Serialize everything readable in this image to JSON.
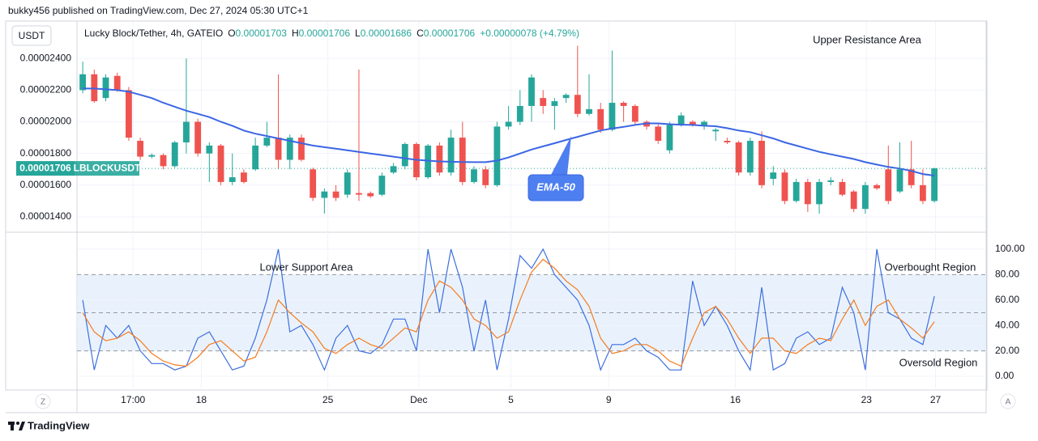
{
  "header": {
    "published": "bukky456 published on TradingView.com, Dec 27, 2024 05:30 UTC+1"
  },
  "footer": {
    "brand": "TradingView"
  },
  "controls": {
    "timezone": "Z",
    "auto_scale": "A"
  },
  "chart_data": [
    {
      "type": "candlestick",
      "currency": "USDT",
      "legend": {
        "symbol": "Lucky Block/Tether, 4h, GATEIO",
        "fields": [
          {
            "label": "O",
            "value": "0.00001703"
          },
          {
            "label": "H",
            "value": "0.00001706"
          },
          {
            "label": "L",
            "value": "0.00001686"
          },
          {
            "label": "C",
            "value": "0.00001706"
          }
        ],
        "change": "+0.00000078 (+4.79%)"
      },
      "last_price": {
        "value": 1.706e-05,
        "label": "0.00001706"
      },
      "ticker": "LBLOCKUSDT",
      "up_color": "#26a69a",
      "down_color": "#ef5350",
      "annotations": [
        "Upper Resistance Area"
      ],
      "open": [
        2.2e-05,
        2.3e-05,
        2.15e-05,
        2.29e-05,
        2.2e-05,
        1.88e-05,
        1.78e-05,
        1.79e-05,
        1.72e-05,
        1.87e-05,
        2e-05,
        1.8e-05,
        1.85e-05,
        1.62e-05,
        1.68e-05,
        1.7e-05,
        1.85e-05,
        1.9e-05,
        1.76e-05,
        1.9e-05,
        1.7e-05,
        1.52e-05,
        1.56e-05,
        1.54e-05,
        1.55e-05,
        1.55e-05,
        1.54e-05,
        1.68e-05,
        1.72e-05,
        1.86e-05,
        1.65e-05,
        1.85e-05,
        1.68e-05,
        1.9e-05,
        1.62e-05,
        1.7e-05,
        1.6e-05,
        1.97e-05,
        2e-05,
        2.1e-05,
        2.15e-05,
        2.1e-05,
        2.15e-05,
        2.17e-05,
        2.05e-05,
        2.08e-05,
        1.95e-05,
        2.12e-05,
        2.1e-05,
        2e-05,
        1.97e-05,
        1.82e-05,
        1.98e-05,
        2e-05,
        1.98e-05,
        1.94e-05,
        1.88e-05,
        1.87e-05,
        1.68e-05,
        1.88e-05,
        1.64e-05,
        1.68e-05,
        1.5e-05,
        1.62e-05,
        1.48e-05,
        1.62e-05,
        1.62e-05,
        1.56e-05,
        1.45e-05,
        1.6e-05,
        1.7e-05,
        1.56e-05,
        1.7e-05,
        1.6e-05,
        1.5e-05
      ],
      "high": [
        2.38e-05,
        2.33e-05,
        2.3e-05,
        2.31e-05,
        2.22e-05,
        1.9e-05,
        1.8e-05,
        1.8e-05,
        1.88e-05,
        2.4e-05,
        2.02e-05,
        1.87e-05,
        1.86e-05,
        1.8e-05,
        1.7e-05,
        1.9e-05,
        2e-05,
        2.3e-05,
        1.92e-05,
        1.92e-05,
        1.71e-05,
        1.58e-05,
        1.6e-05,
        1.7e-05,
        2.33e-05,
        1.56e-05,
        1.68e-05,
        1.74e-05,
        1.87e-05,
        1.87e-05,
        1.86e-05,
        1.87e-05,
        1.95e-05,
        2e-05,
        1.72e-05,
        1.72e-05,
        2e-05,
        2.1e-05,
        2.2e-05,
        2.3e-05,
        2.2e-05,
        2.15e-05,
        2.18e-05,
        2.48e-05,
        2.3e-05,
        2.12e-05,
        2.45e-05,
        2.13e-05,
        2.11e-05,
        2.01e-05,
        1.99e-05,
        2e-05,
        2.06e-05,
        2.01e-05,
        2.01e-05,
        1.96e-05,
        1.9e-05,
        1.88e-05,
        1.9e-05,
        1.94e-05,
        1.72e-05,
        1.7e-05,
        1.64e-05,
        1.64e-05,
        1.64e-05,
        1.65e-05,
        1.64e-05,
        1.57e-05,
        1.62e-05,
        1.61e-05,
        1.85e-05,
        1.87e-05,
        1.88e-05,
        1.7e-05,
        1.71e-05
      ],
      "low": [
        2.18e-05,
        2.12e-05,
        2.13e-05,
        2.19e-05,
        1.88e-05,
        1.76e-05,
        1.77e-05,
        1.7e-05,
        1.71e-05,
        1.8e-05,
        1.78e-05,
        1.62e-05,
        1.6e-05,
        1.6e-05,
        1.61e-05,
        1.69e-05,
        1.84e-05,
        1.7e-05,
        1.7e-05,
        1.75e-05,
        1.5e-05,
        1.42e-05,
        1.5e-05,
        1.52e-05,
        1.5e-05,
        1.52e-05,
        1.53e-05,
        1.67e-05,
        1.7e-05,
        1.63e-05,
        1.64e-05,
        1.66e-05,
        1.66e-05,
        1.6e-05,
        1.61e-05,
        1.58e-05,
        1.59e-05,
        1.95e-05,
        1.98e-05,
        2e-05,
        2.05e-05,
        1.95e-05,
        2.12e-05,
        2.03e-05,
        2.04e-05,
        1.93e-05,
        1.94e-05,
        2e-05,
        1.98e-05,
        1.95e-05,
        1.86e-05,
        1.8e-05,
        1.97e-05,
        1.97e-05,
        1.95e-05,
        1.88e-05,
        1.86e-05,
        1.66e-05,
        1.66e-05,
        1.58e-05,
        1.6e-05,
        1.48e-05,
        1.49e-05,
        1.43e-05,
        1.42e-05,
        1.6e-05,
        1.53e-05,
        1.43e-05,
        1.42e-05,
        1.57e-05,
        1.48e-05,
        1.55e-05,
        1.58e-05,
        1.48e-05,
        1.49e-05
      ],
      "close": [
        2.3e-05,
        2.13e-05,
        2.28e-05,
        2.2e-05,
        1.9e-05,
        1.78e-05,
        1.79e-05,
        1.72e-05,
        1.87e-05,
        2e-05,
        1.8e-05,
        1.85e-05,
        1.62e-05,
        1.65e-05,
        1.62e-05,
        1.85e-05,
        1.9e-05,
        1.76e-05,
        1.9e-05,
        1.76e-05,
        1.52e-05,
        1.56e-05,
        1.52e-05,
        1.68e-05,
        1.54e-05,
        1.53e-05,
        1.66e-05,
        1.72e-05,
        1.86e-05,
        1.65e-05,
        1.85e-05,
        1.68e-05,
        1.9e-05,
        1.62e-05,
        1.7e-05,
        1.6e-05,
        1.97e-05,
        2e-05,
        2.1e-05,
        2.28e-05,
        2.1e-05,
        2.13e-05,
        2.17e-05,
        2.05e-05,
        2.08e-05,
        1.95e-05,
        2.12e-05,
        2.1e-05,
        2e-05,
        1.97e-05,
        1.88e-05,
        1.98e-05,
        2.04e-05,
        1.98e-05,
        2e-05,
        1.95e-05,
        1.87e-05,
        1.68e-05,
        1.88e-05,
        1.6e-05,
        1.68e-05,
        1.5e-05,
        1.62e-05,
        1.48e-05,
        1.62e-05,
        1.63e-05,
        1.54e-05,
        1.45e-05,
        1.6e-05,
        1.58e-05,
        1.5e-05,
        1.7e-05,
        1.6e-05,
        1.5e-05,
        1.706e-05
      ],
      "series": [
        {
          "name": "EMA-50",
          "color": "#3b66e3",
          "values": [
            2.21e-05,
            2.21e-05,
            2.205e-05,
            2.2e-05,
            2.19e-05,
            2.17e-05,
            2.15e-05,
            2.12e-05,
            2.095e-05,
            2.07e-05,
            2.05e-05,
            2.03e-05,
            2e-05,
            1.975e-05,
            1.945e-05,
            1.925e-05,
            1.91e-05,
            1.895e-05,
            1.88e-05,
            1.865e-05,
            1.85e-05,
            1.84e-05,
            1.83e-05,
            1.82e-05,
            1.81e-05,
            1.8e-05,
            1.79e-05,
            1.78e-05,
            1.77e-05,
            1.76e-05,
            1.755e-05,
            1.75e-05,
            1.748e-05,
            1.746e-05,
            1.745e-05,
            1.745e-05,
            1.755e-05,
            1.775e-05,
            1.8e-05,
            1.825e-05,
            1.845e-05,
            1.865e-05,
            1.885e-05,
            1.905e-05,
            1.925e-05,
            1.945e-05,
            1.958e-05,
            1.968e-05,
            1.98e-05,
            1.99e-05,
            1.99e-05,
            1.985e-05,
            1.982e-05,
            1.98e-05,
            1.975e-05,
            1.972e-05,
            1.96e-05,
            1.945e-05,
            1.935e-05,
            1.915e-05,
            1.895e-05,
            1.87e-05,
            1.85e-05,
            1.83e-05,
            1.81e-05,
            1.795e-05,
            1.78e-05,
            1.765e-05,
            1.745e-05,
            1.73e-05,
            1.715e-05,
            1.705e-05,
            1.69e-05,
            1.67e-05,
            1.66e-05
          ]
        }
      ],
      "ylim": [
        1.308e-05,
        2.631e-05
      ],
      "yticks": [
        {
          "value": 2.4e-05,
          "label": "0.00002400"
        },
        {
          "value": 2.2e-05,
          "label": "0.00002200"
        },
        {
          "value": 2e-05,
          "label": "0.00002000"
        },
        {
          "value": 1.8e-05,
          "label": "0.00001800"
        },
        {
          "value": 1.6e-05,
          "label": "0.00001600"
        },
        {
          "value": 1.4e-05,
          "label": "0.00001400"
        }
      ],
      "xlim": [
        -0.5,
        78.5
      ],
      "xticks": [
        {
          "value": 4.37,
          "label": "17:00"
        },
        {
          "value": 10.3,
          "label": "18"
        },
        {
          "value": 21.3,
          "label": "25"
        },
        {
          "value": 29.2,
          "label": "Dec"
        },
        {
          "value": 37.2,
          "label": "5"
        },
        {
          "value": 45.7,
          "label": "9"
        },
        {
          "value": 56.7,
          "label": "16"
        },
        {
          "value": 68.1,
          "label": "23"
        },
        {
          "value": 74.1,
          "label": "27"
        }
      ],
      "grid": true
    },
    {
      "type": "line",
      "annotations": [
        "Lower Support Area",
        "Overbought Region",
        "Oversold Region"
      ],
      "series": [
        {
          "color": "#3d6fe0",
          "values": [
            60,
            5,
            40,
            30,
            40,
            20,
            10,
            10,
            5,
            8,
            30,
            35,
            20,
            5,
            8,
            30,
            60,
            100,
            35,
            40,
            25,
            5,
            30,
            40,
            20,
            18,
            25,
            45,
            45,
            20,
            100,
            50,
            100,
            70,
            20,
            60,
            5,
            45,
            95,
            85,
            100,
            80,
            70,
            60,
            40,
            5,
            25,
            25,
            30,
            20,
            15,
            5,
            5,
            75,
            40,
            55,
            40,
            20,
            5,
            70,
            5,
            10,
            30,
            35,
            25,
            30,
            70,
            50,
            5,
            100,
            50,
            45,
            30,
            25,
            63
          ]
        },
        {
          "color": "#f57c20",
          "values": [
            50,
            35,
            28,
            30,
            35,
            28,
            18,
            12,
            9,
            8,
            15,
            25,
            28,
            20,
            12,
            15,
            35,
            60,
            50,
            42,
            35,
            22,
            18,
            25,
            30,
            25,
            22,
            30,
            38,
            35,
            60,
            75,
            70,
            60,
            45,
            40,
            30,
            35,
            60,
            82,
            92,
            85,
            75,
            68,
            55,
            30,
            18,
            20,
            25,
            25,
            20,
            12,
            8,
            30,
            50,
            55,
            45,
            30,
            18,
            30,
            30,
            20,
            18,
            25,
            30,
            28,
            45,
            60,
            40,
            55,
            60,
            45,
            38,
            30,
            43
          ]
        }
      ],
      "levels": [
        80,
        50,
        20
      ],
      "band_color": "#e3effb",
      "ylim": [
        -10.8,
        112.7
      ],
      "yticks": [
        {
          "value": 100,
          "label": "100.00"
        },
        {
          "value": 80,
          "label": "80.00"
        },
        {
          "value": 60,
          "label": "60.00"
        },
        {
          "value": 40,
          "label": "40.00"
        },
        {
          "value": 20,
          "label": "20.00"
        },
        {
          "value": 0,
          "label": "0.00"
        }
      ],
      "grid": true
    }
  ]
}
